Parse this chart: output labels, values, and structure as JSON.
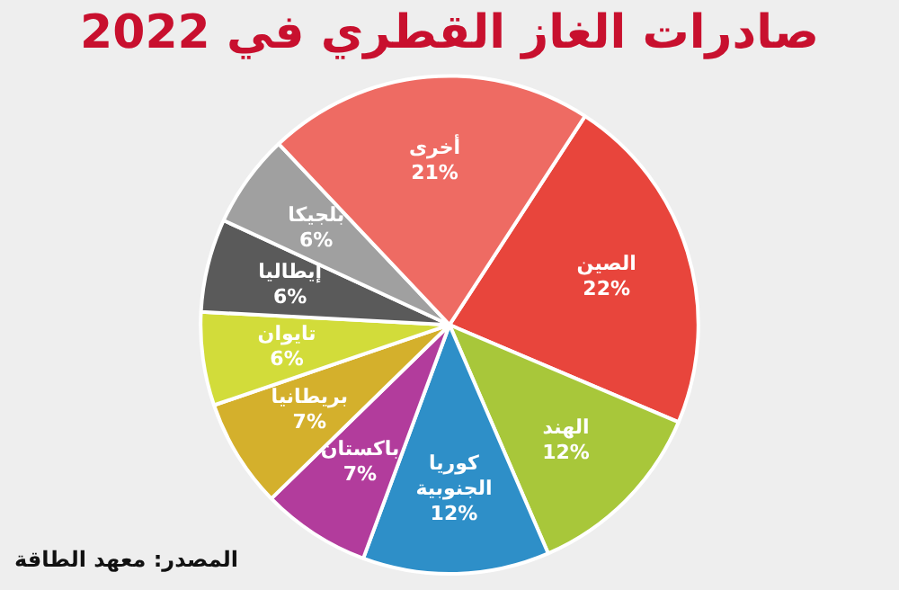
{
  "chart_data": {
    "type": "pie",
    "title": "صادرات الغاز القطري في 2022",
    "categories": [
      "الصين",
      "الهند",
      "كوريا الجنوبية",
      "باكستان",
      "بريطانيا",
      "تايوان",
      "إيطاليا",
      "بلجيكا",
      "أخرى"
    ],
    "values": [
      22,
      12,
      12,
      7,
      7,
      6,
      6,
      6,
      21
    ],
    "value_labels": [
      "22%",
      "12%",
      "12%",
      "7%",
      "7%",
      "6%",
      "6%",
      "6%",
      "21%"
    ],
    "colors": [
      "#e8453c",
      "#a8c73a",
      "#2e8fc8",
      "#b23c9c",
      "#d4b02c",
      "#d2dc3a",
      "#5a5a5a",
      "#a0a0a0",
      "#ee6b63"
    ],
    "legend": false,
    "annotations": [
      "المصدر: معهد الطاقة"
    ]
  }
}
